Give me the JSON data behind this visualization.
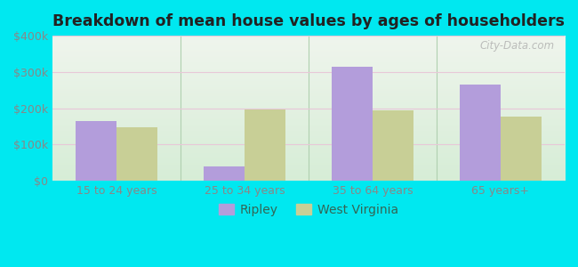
{
  "title": "Breakdown of mean house values by ages of householders",
  "categories": [
    "15 to 24 years",
    "25 to 34 years",
    "35 to 64 years",
    "65 years+"
  ],
  "ripley_values": [
    165000,
    40000,
    315000,
    265000
  ],
  "wv_values": [
    148000,
    197000,
    193000,
    178000
  ],
  "ripley_color": "#b39ddb",
  "wv_color": "#c8cf96",
  "background_color": "#00e8f0",
  "plot_bg_top": "#f0f5ee",
  "plot_bg_bottom": "#d6edd6",
  "ylim": [
    0,
    400000
  ],
  "yticks": [
    0,
    100000,
    200000,
    300000,
    400000
  ],
  "ytick_labels": [
    "$0",
    "$100k",
    "$200k",
    "$300k",
    "$400k"
  ],
  "legend_labels": [
    "Ripley",
    "West Virginia"
  ],
  "bar_width": 0.32,
  "watermark": "City-Data.com",
  "grid_color": "#e8c8d8",
  "tick_color": "#888888",
  "title_color": "#222222",
  "sep_color": "#b0d0b0"
}
